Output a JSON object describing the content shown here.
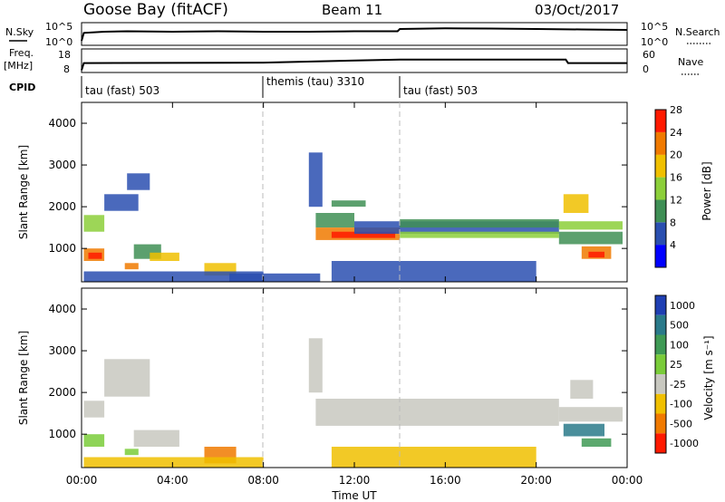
{
  "header": {
    "station": "Goose Bay (fitACF)",
    "beam": "Beam 11",
    "date": "03/Oct/2017"
  },
  "chart_data": [
    {
      "type": "line",
      "name": "noise-panel",
      "left_label": "N.Sky",
      "right_label": "N.Search",
      "yticks_left": [
        "10^5",
        "10^0"
      ],
      "yticks_right": [
        "10^5",
        "10^0"
      ],
      "x_hours": [
        0,
        0.1,
        1,
        2,
        4,
        6,
        8,
        10,
        12,
        13.9,
        14,
        16,
        18,
        20,
        22,
        24
      ],
      "values": [
        0.2,
        0.55,
        0.6,
        0.62,
        0.6,
        0.62,
        0.6,
        0.6,
        0.62,
        0.62,
        0.72,
        0.75,
        0.74,
        0.72,
        0.7,
        0.68
      ]
    },
    {
      "type": "line",
      "name": "freq-nave-panel",
      "left_label": "Freq.",
      "left_unit": "[MHz]",
      "right_label": "Nave",
      "yticks_left": [
        "18",
        "8"
      ],
      "yticks_right": [
        "60",
        "0"
      ],
      "x_hours": [
        0,
        0.1,
        8,
        14,
        21.3,
        21.4,
        24
      ],
      "values": [
        0.1,
        0.4,
        0.42,
        0.55,
        0.55,
        0.4,
        0.4
      ]
    },
    {
      "type": "table",
      "name": "cpid",
      "label": "CPID",
      "segments": [
        {
          "start_hour": 0,
          "end_hour": 8,
          "label": "tau (fast) 503"
        },
        {
          "start_hour": 8,
          "end_hour": 14,
          "label": "themis (tau) 3310"
        },
        {
          "start_hour": 14,
          "end_hour": 24,
          "label": "tau (fast) 503"
        }
      ]
    },
    {
      "type": "heatmap",
      "name": "power",
      "ylabel": "Slant Range [km]",
      "yticks": [
        1000,
        2000,
        3000,
        4000
      ],
      "ylim": [
        200,
        4500
      ],
      "xlim": [
        0,
        24
      ],
      "colorbar_label": "Power [dB]",
      "colorbar_ticks": [
        "4",
        "8",
        "12",
        "16",
        "20",
        "24",
        "28"
      ],
      "colorbar_colors": [
        "#0000ff",
        "#2a4fb0",
        "#3f8f55",
        "#8ccf3a",
        "#f0c000",
        "#f07a00",
        "#ff1a00"
      ],
      "patches": [
        {
          "x0": 0.1,
          "x1": 1.0,
          "y0": 1400,
          "y1": 1800,
          "c": "#8ccf3a"
        },
        {
          "x0": 0.1,
          "x1": 1.0,
          "y0": 700,
          "y1": 1000,
          "c": "#f07a00"
        },
        {
          "x0": 0.3,
          "x1": 0.9,
          "y0": 750,
          "y1": 900,
          "c": "#ff1a00"
        },
        {
          "x0": 1.0,
          "x1": 2.5,
          "y0": 1900,
          "y1": 2300,
          "c": "#2a4fb0"
        },
        {
          "x0": 2.0,
          "x1": 3.0,
          "y0": 2400,
          "y1": 2800,
          "c": "#2a4fb0"
        },
        {
          "x0": 2.3,
          "x1": 3.5,
          "y0": 750,
          "y1": 1100,
          "c": "#3f8f55"
        },
        {
          "x0": 3.0,
          "x1": 4.3,
          "y0": 700,
          "y1": 900,
          "c": "#f0c000"
        },
        {
          "x0": 1.9,
          "x1": 2.5,
          "y0": 500,
          "y1": 650,
          "c": "#f07a00"
        },
        {
          "x0": 5.4,
          "x1": 6.8,
          "y0": 350,
          "y1": 650,
          "c": "#f0c000"
        },
        {
          "x0": 0.1,
          "x1": 8.0,
          "y0": 200,
          "y1": 450,
          "c": "#2a4fb0"
        },
        {
          "x0": 6.5,
          "x1": 10.5,
          "y0": 200,
          "y1": 400,
          "c": "#2a4fb0"
        },
        {
          "x0": 10.3,
          "x1": 12.0,
          "y0": 1500,
          "y1": 1850,
          "c": "#3f8f55"
        },
        {
          "x0": 10.3,
          "x1": 14.0,
          "y0": 1200,
          "y1": 1500,
          "c": "#f07a00"
        },
        {
          "x0": 11.0,
          "x1": 13.8,
          "y0": 1250,
          "y1": 1400,
          "c": "#ff1a00"
        },
        {
          "x0": 10.0,
          "x1": 10.6,
          "y0": 2000,
          "y1": 3300,
          "c": "#2a4fb0"
        },
        {
          "x0": 11.0,
          "x1": 12.5,
          "y0": 2000,
          "y1": 2150,
          "c": "#3f8f55"
        },
        {
          "x0": 12.0,
          "x1": 21.0,
          "y0": 1350,
          "y1": 1650,
          "c": "#2a4fb0"
        },
        {
          "x0": 14.0,
          "x1": 21.0,
          "y0": 1500,
          "y1": 1700,
          "c": "#3f8f55"
        },
        {
          "x0": 14.0,
          "x1": 21.0,
          "y0": 1250,
          "y1": 1400,
          "c": "#8ccf3a"
        },
        {
          "x0": 21.0,
          "x1": 23.8,
          "y0": 1450,
          "y1": 1650,
          "c": "#8ccf3a"
        },
        {
          "x0": 21.0,
          "x1": 23.8,
          "y0": 1100,
          "y1": 1400,
          "c": "#3f8f55"
        },
        {
          "x0": 21.2,
          "x1": 22.3,
          "y0": 1850,
          "y1": 2300,
          "c": "#f0c000"
        },
        {
          "x0": 22.0,
          "x1": 23.3,
          "y0": 750,
          "y1": 1050,
          "c": "#f07a00"
        },
        {
          "x0": 22.3,
          "x1": 23.0,
          "y0": 780,
          "y1": 920,
          "c": "#ff1a00"
        },
        {
          "x0": 11.0,
          "x1": 20.0,
          "y0": 200,
          "y1": 700,
          "c": "#2a4fb0"
        }
      ]
    },
    {
      "type": "heatmap",
      "name": "velocity",
      "ylabel": "Slant Range [km]",
      "yticks": [
        1000,
        2000,
        3000,
        4000
      ],
      "ylim": [
        200,
        4500
      ],
      "xlim": [
        0,
        24
      ],
      "xticks": [
        "00:00",
        "04:00",
        "08:00",
        "12:00",
        "16:00",
        "20:00",
        "00:00"
      ],
      "xlabel": "Time UT",
      "colorbar_label": "Velocity [m s⁻¹]",
      "colorbar_ticks": [
        "1000",
        "500",
        "100",
        "25",
        "-25",
        "-100",
        "-500",
        "-1000"
      ],
      "colorbar_colors": [
        "#1f3fb3",
        "#2a7a8a",
        "#3f9a55",
        "#7acc3a",
        "#c8c8c0",
        "#f0c000",
        "#f07a00",
        "#ff1a00"
      ],
      "patches": [
        {
          "x0": 0.1,
          "x1": 1.0,
          "y0": 1400,
          "y1": 1800,
          "c": "#c8c8c0"
        },
        {
          "x0": 0.1,
          "x1": 1.0,
          "y0": 700,
          "y1": 1000,
          "c": "#7acc3a"
        },
        {
          "x0": 1.0,
          "x1": 3.0,
          "y0": 1900,
          "y1": 2800,
          "c": "#c8c8c0"
        },
        {
          "x0": 2.3,
          "x1": 4.3,
          "y0": 700,
          "y1": 1100,
          "c": "#c8c8c0"
        },
        {
          "x0": 1.9,
          "x1": 2.5,
          "y0": 500,
          "y1": 650,
          "c": "#7acc3a"
        },
        {
          "x0": 5.4,
          "x1": 6.8,
          "y0": 300,
          "y1": 700,
          "c": "#f07a00"
        },
        {
          "x0": 0.1,
          "x1": 8.0,
          "y0": 200,
          "y1": 450,
          "c": "#f0c000"
        },
        {
          "x0": 10.3,
          "x1": 21.0,
          "y0": 1200,
          "y1": 1850,
          "c": "#c8c8c0"
        },
        {
          "x0": 10.0,
          "x1": 10.6,
          "y0": 2000,
          "y1": 3300,
          "c": "#c8c8c0"
        },
        {
          "x0": 21.0,
          "x1": 23.8,
          "y0": 1300,
          "y1": 1650,
          "c": "#c8c8c0"
        },
        {
          "x0": 21.2,
          "x1": 23.0,
          "y0": 950,
          "y1": 1250,
          "c": "#2a7a8a"
        },
        {
          "x0": 22.0,
          "x1": 23.3,
          "y0": 700,
          "y1": 900,
          "c": "#3f9a55"
        },
        {
          "x0": 21.5,
          "x1": 22.5,
          "y0": 1850,
          "y1": 2300,
          "c": "#c8c8c0"
        },
        {
          "x0": 11.0,
          "x1": 20.0,
          "y0": 200,
          "y1": 700,
          "c": "#f0c000"
        }
      ]
    }
  ]
}
